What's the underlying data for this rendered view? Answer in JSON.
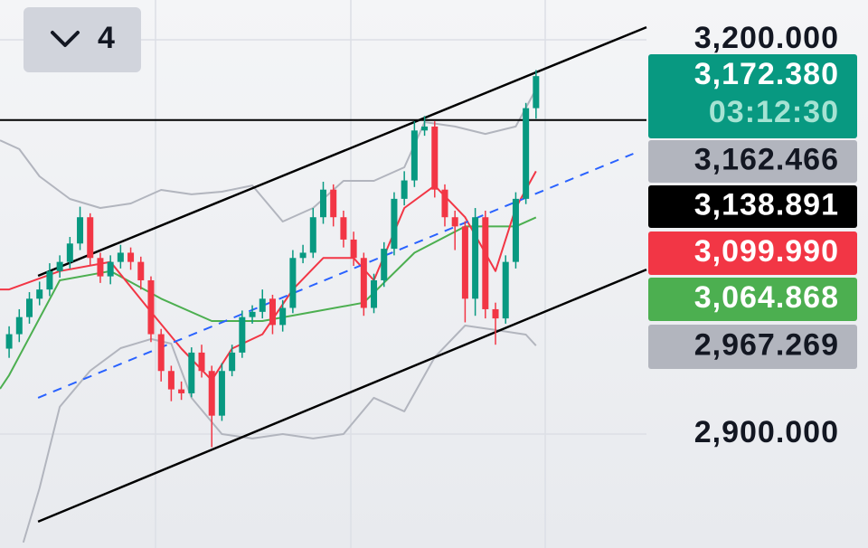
{
  "chart_data": {
    "type": "candlestick",
    "open": [
      2965,
      2976,
      2989,
      3003,
      3010,
      3024,
      3031,
      3045,
      3065,
      3034,
      3020,
      3031,
      3038,
      3031,
      3017,
      2976,
      2948,
      2934,
      2931,
      2962,
      2948,
      2914,
      2948,
      2962,
      2989,
      2993,
      3003,
      2983,
      2996,
      3034,
      3038,
      3065,
      3086,
      3065,
      3048,
      3034,
      2996,
      3017,
      3041,
      3079,
      3093,
      3131,
      3134,
      3086,
      3065,
      3058,
      3003,
      3065,
      2995,
      2988,
      3031,
      3079,
      3148
    ],
    "high": [
      2982,
      2995,
      3008,
      3016,
      3030,
      3036,
      3050,
      3073,
      3068,
      3038,
      3036,
      3044,
      3042,
      3035,
      3020,
      2980,
      2952,
      2940,
      2966,
      2968,
      2952,
      2954,
      2968,
      2994,
      2998,
      3010,
      3006,
      3002,
      3040,
      3044,
      3072,
      3092,
      3090,
      3070,
      3054,
      3038,
      3022,
      3046,
      3084,
      3100,
      3138,
      3142,
      3138,
      3090,
      3070,
      3062,
      3072,
      3070,
      3000,
      3036,
      3084,
      3152,
      3177
    ],
    "low": [
      2958,
      2970,
      2984,
      2998,
      3005,
      3019,
      3026,
      3040,
      3028,
      3015,
      3014,
      3026,
      3025,
      3010,
      2970,
      2940,
      2925,
      2926,
      2928,
      2943,
      2890,
      2910,
      2944,
      2958,
      2984,
      2988,
      2976,
      2978,
      2992,
      3030,
      3034,
      3060,
      3058,
      3042,
      3028,
      2990,
      2992,
      3012,
      3036,
      3074,
      3088,
      3127,
      3080,
      3058,
      3040,
      2985,
      2990,
      2988,
      2968,
      2984,
      3026,
      3075,
      3140
    ],
    "close": [
      2976,
      2989,
      3003,
      3010,
      3024,
      3031,
      3045,
      3065,
      3034,
      3020,
      3031,
      3038,
      3031,
      3017,
      2976,
      2948,
      2934,
      2931,
      2962,
      2948,
      2914,
      2948,
      2962,
      2989,
      2993,
      3003,
      2983,
      2996,
      3034,
      3038,
      3065,
      3086,
      3065,
      3048,
      3034,
      2996,
      3017,
      3041,
      3079,
      3093,
      3131,
      3134,
      3086,
      3065,
      3058,
      3003,
      3065,
      2995,
      2988,
      3031,
      3079,
      3148,
      3172.38
    ],
    "colors": {
      "up": "#089981",
      "down": "#f23645"
    },
    "xlim": [
      -0.9,
      62.9
    ],
    "ylim": [
      2813.3,
      3230.3
    ],
    "yticks": [
      {
        "value": 3200,
        "label": "3,200.000"
      },
      {
        "value": 2900,
        "label": "2,900.000"
      }
    ],
    "grid": true,
    "overlays": [
      {
        "color": "#b2b5be",
        "width": 2,
        "x": [
          -0.9,
          1,
          3,
          6,
          9,
          12,
          15,
          18,
          21,
          24,
          27,
          30,
          33,
          36,
          39,
          41,
          44,
          47,
          50,
          52
        ],
        "values": [
          3123.6,
          3116.8,
          3096.1,
          3078.9,
          3072,
          3075.5,
          3085.8,
          3082.4,
          3084.4,
          3089.2,
          3061.7,
          3072,
          3092.7,
          3092.7,
          3103,
          3137.4,
          3134,
          3128.4,
          3134,
          3162.466
        ]
      },
      {
        "color": "#b2b5be",
        "width": 2,
        "x": [
          1.4,
          3,
          5,
          8,
          11,
          14,
          16,
          18,
          21,
          24,
          27,
          30,
          33,
          36,
          39,
          42,
          45,
          48,
          51,
          52
        ],
        "values": [
          2817.5,
          2858.8,
          2920.7,
          2948.2,
          2965.4,
          2972.3,
          2968.8,
          2927.6,
          2900,
          2896.6,
          2900,
          2896.6,
          2900,
          2927.6,
          2917.3,
          2958.5,
          2982.6,
          2979.2,
          2975.7,
          2967.269
        ]
      },
      {
        "color": "#4caf50",
        "width": 2,
        "x": [
          -0.9,
          0,
          5,
          10,
          15,
          20,
          25,
          30,
          35,
          40,
          45,
          50,
          52
        ],
        "values": [
          2934.4,
          2944.8,
          3017,
          3024,
          3003,
          2986,
          2986,
          2993,
          3000,
          3038,
          3058,
          3058,
          3064.868
        ]
      },
      {
        "color": "#f23645",
        "width": 2,
        "x": [
          -0.9,
          0,
          5,
          10,
          14,
          17,
          20,
          22,
          25,
          28,
          31,
          34,
          36,
          39,
          42,
          45,
          48,
          50,
          52
        ],
        "values": [
          3010,
          3010,
          3024,
          3031,
          2993,
          2965,
          2941,
          2965,
          2976,
          3010,
          3034,
          3034,
          3017,
          3072,
          3089,
          3065,
          3024,
          3072,
          3099.99
        ]
      },
      {
        "color": "#000000",
        "width": 2,
        "x": [
          -0.9,
          62.9
        ],
        "values": [
          3138.891,
          3138.891
        ]
      },
      {
        "color": "#000000",
        "width": 2.5,
        "x": [
          2.86,
          62.9
        ],
        "values": [
          3020.4,
          3209.6
        ]
      },
      {
        "color": "#000000",
        "width": 2.5,
        "x": [
          2.86,
          62.9
        ],
        "values": [
          2833.3,
          3025.2
        ]
      },
      {
        "color": "#2962ff",
        "width": 2,
        "dashed": true,
        "x": [
          2.86,
          61.6
        ],
        "values": [
          2927.6,
          3113.3
        ]
      }
    ],
    "price_labels": [
      {
        "value": 3172.38,
        "label": "3,172.380",
        "color": "#089981",
        "text_color": "#ffffff"
      },
      {
        "value": 3162.466,
        "label": "3,162.466",
        "color": "#b2b5be",
        "text_color": "#131722"
      },
      {
        "value": 3138.891,
        "label": "3,138.891",
        "color": "#000000",
        "text_color": "#ffffff"
      },
      {
        "value": 3099.99,
        "label": "3,099.990",
        "color": "#f23645",
        "text_color": "#ffffff"
      },
      {
        "value": 3064.868,
        "label": "3,064.868",
        "color": "#4caf50",
        "text_color": "#ffffff"
      },
      {
        "value": 2967.269,
        "label": "2,967.269",
        "color": "#b2b5be",
        "text_color": "#131722"
      }
    ],
    "countdown": "03:12:30"
  },
  "toolbar": {
    "interval": "4"
  }
}
